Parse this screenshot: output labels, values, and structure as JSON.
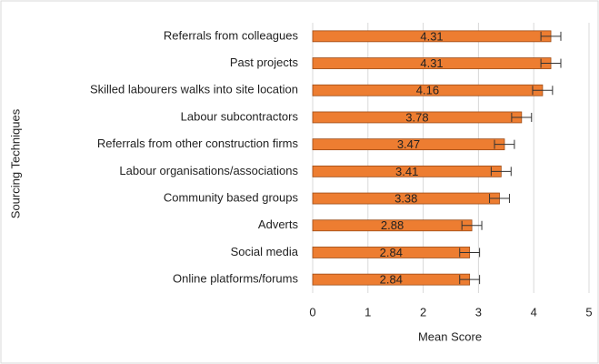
{
  "chart_data": {
    "type": "bar",
    "orientation": "horizontal",
    "categories": [
      "Referrals from colleagues",
      "Past projects",
      "Skilled labourers walks into site location",
      "Labour subcontractors",
      "Referrals from other construction firms",
      "Labour organisations/associations",
      "Community based groups",
      "Adverts",
      "Social media",
      "Online platforms/forums"
    ],
    "values": [
      4.31,
      4.31,
      4.16,
      3.78,
      3.47,
      3.41,
      3.38,
      2.88,
      2.84,
      2.84
    ],
    "errors": [
      0.18,
      0.18,
      0.18,
      0.18,
      0.18,
      0.18,
      0.18,
      0.18,
      0.18,
      0.18
    ],
    "color": "#ed7d31",
    "xlim": [
      0,
      5
    ],
    "xticks": [
      0,
      1,
      2,
      3,
      4,
      5
    ],
    "grid": true,
    "x_label": "Mean Score",
    "y_label": "Sourcing Techniques"
  }
}
